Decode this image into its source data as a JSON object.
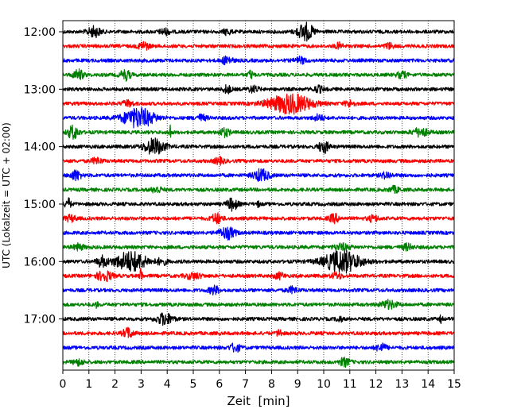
{
  "chart_data": {
    "type": "line",
    "subtype": "helicorder / seismogram drum plot",
    "xlabel": "Zeit  [min]",
    "ylabel": "UTC (Lokalzeit = UTC + 02:00)",
    "xlim": [
      0,
      15
    ],
    "x_ticks": [
      "0",
      "1",
      "2",
      "3",
      "4",
      "5",
      "6",
      "7",
      "8",
      "9",
      "10",
      "11",
      "12",
      "13",
      "14",
      "15"
    ],
    "y_tick_labels": [
      "12:00",
      "13:00",
      "14:00",
      "15:00",
      "16:00",
      "17:00"
    ],
    "grid": "vertical dotted lines at each minute",
    "trace_colors": [
      "#000000",
      "#ff0000",
      "#0000ff",
      "#008000"
    ],
    "trace_count": 24,
    "trace_interval_min": 15,
    "traces": [
      {
        "start": "12:00",
        "color": "#000000",
        "events": [
          [
            1.2,
            0.5,
            0.25
          ],
          [
            3.9,
            0.3,
            0.2
          ],
          [
            6.3,
            0.3,
            0.15
          ],
          [
            9.3,
            0.9,
            0.3
          ]
        ]
      },
      {
        "start": "12:15",
        "color": "#ff0000",
        "events": [
          [
            3.1,
            0.4,
            0.2
          ],
          [
            10.6,
            0.3,
            0.15
          ],
          [
            12.5,
            0.3,
            0.15
          ]
        ]
      },
      {
        "start": "12:30",
        "color": "#0000ff",
        "events": [
          [
            6.3,
            0.4,
            0.2
          ],
          [
            9.1,
            0.3,
            0.2
          ]
        ]
      },
      {
        "start": "12:45",
        "color": "#008000",
        "events": [
          [
            0.6,
            0.5,
            0.2
          ],
          [
            2.4,
            0.5,
            0.2
          ],
          [
            7.2,
            0.4,
            0.1
          ],
          [
            13.0,
            0.3,
            0.2
          ]
        ]
      },
      {
        "start": "13:00",
        "color": "#000000",
        "events": [
          [
            6.3,
            0.4,
            0.15
          ],
          [
            7.3,
            0.3,
            0.2
          ],
          [
            9.8,
            0.3,
            0.2
          ]
        ]
      },
      {
        "start": "13:15",
        "color": "#ff0000",
        "events": [
          [
            2.5,
            0.3,
            0.2
          ],
          [
            8.7,
            1.0,
            0.8
          ],
          [
            11.0,
            0.3,
            0.2
          ]
        ]
      },
      {
        "start": "13:30",
        "color": "#0000ff",
        "events": [
          [
            2.9,
            1.0,
            0.6
          ],
          [
            5.3,
            0.3,
            0.2
          ],
          [
            9.8,
            0.3,
            0.2
          ]
        ]
      },
      {
        "start": "13:45",
        "color": "#008000",
        "events": [
          [
            0.4,
            0.7,
            0.2
          ],
          [
            4.1,
            0.9,
            0.05
          ],
          [
            6.2,
            0.4,
            0.2
          ],
          [
            13.7,
            0.4,
            0.3
          ]
        ]
      },
      {
        "start": "14:00",
        "color": "#000000",
        "events": [
          [
            3.5,
            0.8,
            0.4
          ],
          [
            10.0,
            0.6,
            0.2
          ]
        ]
      },
      {
        "start": "14:15",
        "color": "#ff0000",
        "events": [
          [
            1.3,
            0.3,
            0.2
          ],
          [
            6.0,
            0.3,
            0.2
          ]
        ]
      },
      {
        "start": "14:30",
        "color": "#0000ff",
        "events": [
          [
            0.5,
            0.5,
            0.2
          ],
          [
            7.6,
            0.6,
            0.3
          ],
          [
            12.4,
            0.3,
            0.2
          ]
        ]
      },
      {
        "start": "14:45",
        "color": "#008000",
        "events": [
          [
            3.6,
            0.3,
            0.2
          ],
          [
            12.7,
            0.3,
            0.2
          ]
        ]
      },
      {
        "start": "15:00",
        "color": "#000000",
        "events": [
          [
            0.2,
            0.6,
            0.1
          ],
          [
            6.5,
            0.6,
            0.2
          ],
          [
            7.5,
            0.3,
            0.05
          ]
        ]
      },
      {
        "start": "15:15",
        "color": "#ff0000",
        "events": [
          [
            0.3,
            0.3,
            0.2
          ],
          [
            5.9,
            0.5,
            0.2
          ],
          [
            10.4,
            0.4,
            0.2
          ],
          [
            11.9,
            0.3,
            0.2
          ]
        ]
      },
      {
        "start": "15:30",
        "color": "#0000ff",
        "events": [
          [
            6.3,
            0.6,
            0.3
          ]
        ]
      },
      {
        "start": "15:45",
        "color": "#008000",
        "events": [
          [
            0.6,
            0.3,
            0.2
          ],
          [
            10.7,
            0.3,
            0.3
          ],
          [
            13.2,
            0.3,
            0.2
          ]
        ]
      },
      {
        "start": "16:00",
        "color": "#000000",
        "events": [
          [
            1.5,
            0.5,
            0.2
          ],
          [
            2.6,
            1.0,
            0.6
          ],
          [
            3.8,
            0.3,
            0.2
          ],
          [
            10.7,
            1.1,
            0.7
          ]
        ]
      },
      {
        "start": "16:15",
        "color": "#ff0000",
        "events": [
          [
            1.6,
            0.5,
            0.3
          ],
          [
            3.0,
            0.9,
            0.05
          ],
          [
            5.0,
            0.3,
            0.3
          ],
          [
            8.3,
            0.3,
            0.2
          ],
          [
            10.5,
            0.3,
            0.2
          ]
        ]
      },
      {
        "start": "16:30",
        "color": "#0000ff",
        "events": [
          [
            5.8,
            0.4,
            0.2
          ],
          [
            8.8,
            0.3,
            0.2
          ]
        ]
      },
      {
        "start": "16:45",
        "color": "#008000",
        "events": [
          [
            1.3,
            0.3,
            0.05
          ],
          [
            12.5,
            0.4,
            0.3
          ]
        ]
      },
      {
        "start": "17:00",
        "color": "#000000",
        "events": [
          [
            3.9,
            0.6,
            0.3
          ],
          [
            10.6,
            0.3,
            0.1
          ],
          [
            14.5,
            0.4,
            0.05
          ]
        ]
      },
      {
        "start": "17:15",
        "color": "#ff0000",
        "events": [
          [
            2.5,
            0.5,
            0.2
          ],
          [
            8.3,
            0.4,
            0.1
          ]
        ]
      },
      {
        "start": "17:30",
        "color": "#0000ff",
        "events": [
          [
            6.6,
            0.4,
            0.2
          ],
          [
            12.2,
            0.4,
            0.2
          ]
        ]
      },
      {
        "start": "17:45",
        "color": "#008000",
        "events": [
          [
            0.6,
            0.3,
            0.2
          ],
          [
            10.8,
            0.4,
            0.2
          ]
        ]
      }
    ]
  }
}
